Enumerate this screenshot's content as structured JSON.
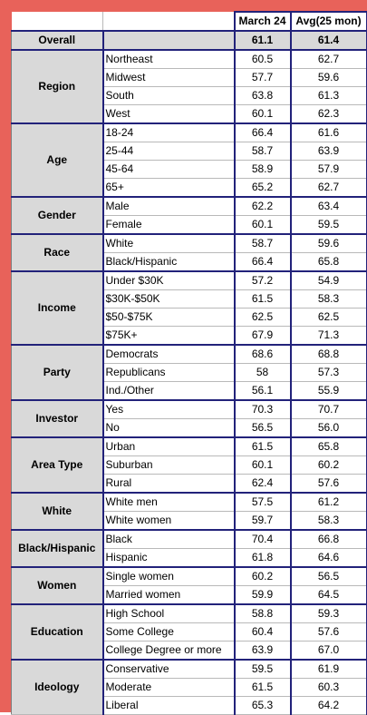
{
  "header": {
    "col1": "March 24",
    "col2": "Avg(25 mon)"
  },
  "overall": {
    "label": "Overall",
    "march": "61.1",
    "avg": "61.4"
  },
  "groups": [
    {
      "name": "Region",
      "rows": [
        {
          "label": "Northeast",
          "march": "60.5",
          "avg": "62.7"
        },
        {
          "label": "Midwest",
          "march": "57.7",
          "avg": "59.6"
        },
        {
          "label": "South",
          "march": "63.8",
          "avg": "61.3"
        },
        {
          "label": "West",
          "march": "60.1",
          "avg": "62.3"
        }
      ]
    },
    {
      "name": "Age",
      "rows": [
        {
          "label": "18-24",
          "march": "66.4",
          "avg": "61.6"
        },
        {
          "label": "25-44",
          "march": "58.7",
          "avg": "63.9"
        },
        {
          "label": "45-64",
          "march": "58.9",
          "avg": "57.9"
        },
        {
          "label": "65+",
          "march": "65.2",
          "avg": "62.7"
        }
      ]
    },
    {
      "name": "Gender",
      "rows": [
        {
          "label": "Male",
          "march": "62.2",
          "avg": "63.4"
        },
        {
          "label": "Female",
          "march": "60.1",
          "avg": "59.5"
        }
      ]
    },
    {
      "name": "Race",
      "rows": [
        {
          "label": "White",
          "march": "58.7",
          "avg": "59.6"
        },
        {
          "label": "Black/Hispanic",
          "march": "66.4",
          "avg": "65.8"
        }
      ]
    },
    {
      "name": "Income",
      "rows": [
        {
          "label": "Under $30K",
          "march": "57.2",
          "avg": "54.9"
        },
        {
          "label": "$30K-$50K",
          "march": "61.5",
          "avg": "58.3"
        },
        {
          "label": "$50-$75K",
          "march": "62.5",
          "avg": "62.5"
        },
        {
          "label": "$75K+",
          "march": "67.9",
          "avg": "71.3"
        }
      ]
    },
    {
      "name": "Party",
      "rows": [
        {
          "label": "Democrats",
          "march": "68.6",
          "avg": "68.8"
        },
        {
          "label": "Republicans",
          "march": "58",
          "avg": "57.3"
        },
        {
          "label": "Ind./Other",
          "march": "56.1",
          "avg": "55.9"
        }
      ]
    },
    {
      "name": "Investor",
      "rows": [
        {
          "label": "Yes",
          "march": "70.3",
          "avg": "70.7"
        },
        {
          "label": "No",
          "march": "56.5",
          "avg": "56.0"
        }
      ]
    },
    {
      "name": "Area Type",
      "rows": [
        {
          "label": "Urban",
          "march": "61.5",
          "avg": "65.8"
        },
        {
          "label": "Suburban",
          "march": "60.1",
          "avg": "60.2"
        },
        {
          "label": "Rural",
          "march": "62.4",
          "avg": "57.6"
        }
      ]
    },
    {
      "name": "White",
      "rows": [
        {
          "label": "White men",
          "march": "57.5",
          "avg": "61.2"
        },
        {
          "label": "White women",
          "march": "59.7",
          "avg": "58.3"
        }
      ]
    },
    {
      "name": "Black/Hispanic",
      "rows": [
        {
          "label": "Black",
          "march": "70.4",
          "avg": "66.8"
        },
        {
          "label": "Hispanic",
          "march": "61.8",
          "avg": "64.6"
        }
      ]
    },
    {
      "name": "Women",
      "rows": [
        {
          "label": "Single women",
          "march": "60.2",
          "avg": "56.5"
        },
        {
          "label": "Married women",
          "march": "59.9",
          "avg": "64.5"
        }
      ]
    },
    {
      "name": "Education",
      "rows": [
        {
          "label": "High School",
          "march": "58.8",
          "avg": "59.3"
        },
        {
          "label": "Some College",
          "march": "60.4",
          "avg": "57.6"
        },
        {
          "label": "College Degree or more",
          "march": "63.9",
          "avg": "67.0"
        }
      ]
    },
    {
      "name": "Ideology",
      "rows": [
        {
          "label": "Conservative",
          "march": "59.5",
          "avg": "61.9"
        },
        {
          "label": "Moderate",
          "march": "61.5",
          "avg": "60.3"
        },
        {
          "label": "Liberal",
          "march": "65.3",
          "avg": "64.2"
        }
      ]
    }
  ]
}
